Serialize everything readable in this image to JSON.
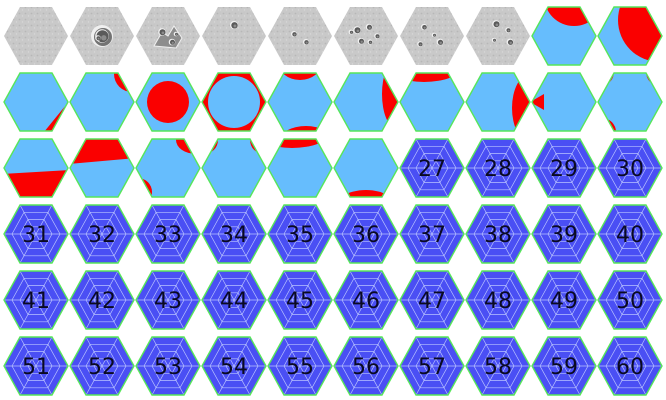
{
  "sheet": {
    "columns": 10,
    "colors": {
      "moon_fill": "#c9c9c9",
      "moon_shade": "#9c9c9c",
      "crater_dark": "#5a5a5a",
      "crater_light": "#f2f2f2",
      "light_blue": "#66bdfd",
      "red": "#fa0000",
      "blue_fill": "#4a4ff4",
      "grid_line": "#b9c3ff",
      "edge": "#57e65a",
      "number_ink": "#0a0a22"
    },
    "tiles": [
      {
        "kind": "moon",
        "variant": "smooth"
      },
      {
        "kind": "moon",
        "variant": "big-crater"
      },
      {
        "kind": "moon",
        "variant": "rocky"
      },
      {
        "kind": "moon",
        "variant": "small-crater"
      },
      {
        "kind": "moon",
        "variant": "pits"
      },
      {
        "kind": "moon",
        "variant": "many-craters"
      },
      {
        "kind": "moon",
        "variant": "scattered-craters"
      },
      {
        "kind": "moon",
        "variant": "crater-cluster"
      },
      {
        "kind": "region",
        "pattern": "red-right-band"
      },
      {
        "kind": "region",
        "pattern": "red-left-band"
      },
      {
        "kind": "region",
        "pattern": "red-bottom-right-corner"
      },
      {
        "kind": "region",
        "pattern": "red-top-right-corner"
      },
      {
        "kind": "region",
        "pattern": "red-ring-blue-circle"
      },
      {
        "kind": "region",
        "pattern": "blue-circle-red-corners"
      },
      {
        "kind": "region",
        "pattern": "red-top-and-bottom-arcs"
      },
      {
        "kind": "region",
        "pattern": "red-top-right-arc"
      },
      {
        "kind": "region",
        "pattern": "red-top-left-arc"
      },
      {
        "kind": "region",
        "pattern": "red-right-arc"
      },
      {
        "kind": "region",
        "pattern": "red-left-tip"
      },
      {
        "kind": "region",
        "pattern": "red-three-corners"
      },
      {
        "kind": "region",
        "pattern": "red-bottom-half"
      },
      {
        "kind": "region",
        "pattern": "red-top-band"
      },
      {
        "kind": "region",
        "pattern": "red-top-right-and-bottom-left"
      },
      {
        "kind": "region",
        "pattern": "red-top-corners"
      },
      {
        "kind": "region",
        "pattern": "red-top-left-arc"
      },
      {
        "kind": "region",
        "pattern": "red-bottom-arc"
      },
      {
        "kind": "number",
        "label": "27"
      },
      {
        "kind": "number",
        "label": "28"
      },
      {
        "kind": "number",
        "label": "29"
      },
      {
        "kind": "number",
        "label": "30"
      },
      {
        "kind": "number",
        "label": "31"
      },
      {
        "kind": "number",
        "label": "32"
      },
      {
        "kind": "number",
        "label": "33"
      },
      {
        "kind": "number",
        "label": "34"
      },
      {
        "kind": "number",
        "label": "35"
      },
      {
        "kind": "number",
        "label": "36"
      },
      {
        "kind": "number",
        "label": "37"
      },
      {
        "kind": "number",
        "label": "38"
      },
      {
        "kind": "number",
        "label": "39"
      },
      {
        "kind": "number",
        "label": "40"
      },
      {
        "kind": "number",
        "label": "41"
      },
      {
        "kind": "number",
        "label": "42"
      },
      {
        "kind": "number",
        "label": "43"
      },
      {
        "kind": "number",
        "label": "44"
      },
      {
        "kind": "number",
        "label": "45"
      },
      {
        "kind": "number",
        "label": "46"
      },
      {
        "kind": "number",
        "label": "47"
      },
      {
        "kind": "number",
        "label": "48"
      },
      {
        "kind": "number",
        "label": "49"
      },
      {
        "kind": "number",
        "label": "50"
      },
      {
        "kind": "number",
        "label": "51"
      },
      {
        "kind": "number",
        "label": "52"
      },
      {
        "kind": "number",
        "label": "53"
      },
      {
        "kind": "number",
        "label": "54"
      },
      {
        "kind": "number",
        "label": "55"
      },
      {
        "kind": "number",
        "label": "56"
      },
      {
        "kind": "number",
        "label": "57"
      },
      {
        "kind": "number",
        "label": "58"
      },
      {
        "kind": "number",
        "label": "59"
      },
      {
        "kind": "number",
        "label": "60"
      }
    ]
  }
}
